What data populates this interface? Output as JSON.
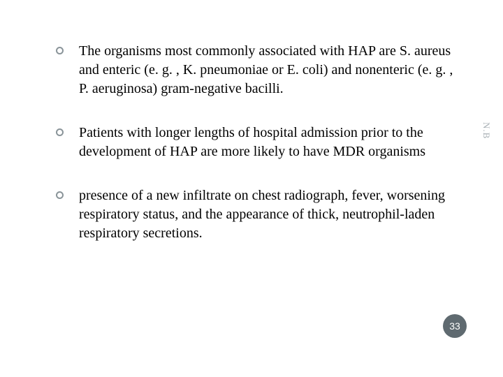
{
  "slide": {
    "bullets": [
      "The organisms most commonly associated with HAP are S. aureus and enteric (e. g. , K. pneumoniae or E. coli) and nonenteric (e. g. , P. aeruginosa) gram-negative bacilli.",
      "Patients with longer lengths of hospital admission prior to the development of HAP are more likely to have MDR organisms",
      "presence of a new infiltrate on chest radiograph, fever, worsening respiratory status, and the appearance of thick, neutrophil-laden respiratory secretions."
    ],
    "side_label": "N.B",
    "page_number": "33"
  },
  "style": {
    "background_color": "#ffffff",
    "text_color": "#000000",
    "bullet_ring_color": "#8a9499",
    "side_label_color": "#a8b0b5",
    "badge_bg": "#5f6a70",
    "badge_text": "#ffffff",
    "body_fontsize": 20,
    "side_fontsize": 13,
    "badge_fontsize": 14
  }
}
